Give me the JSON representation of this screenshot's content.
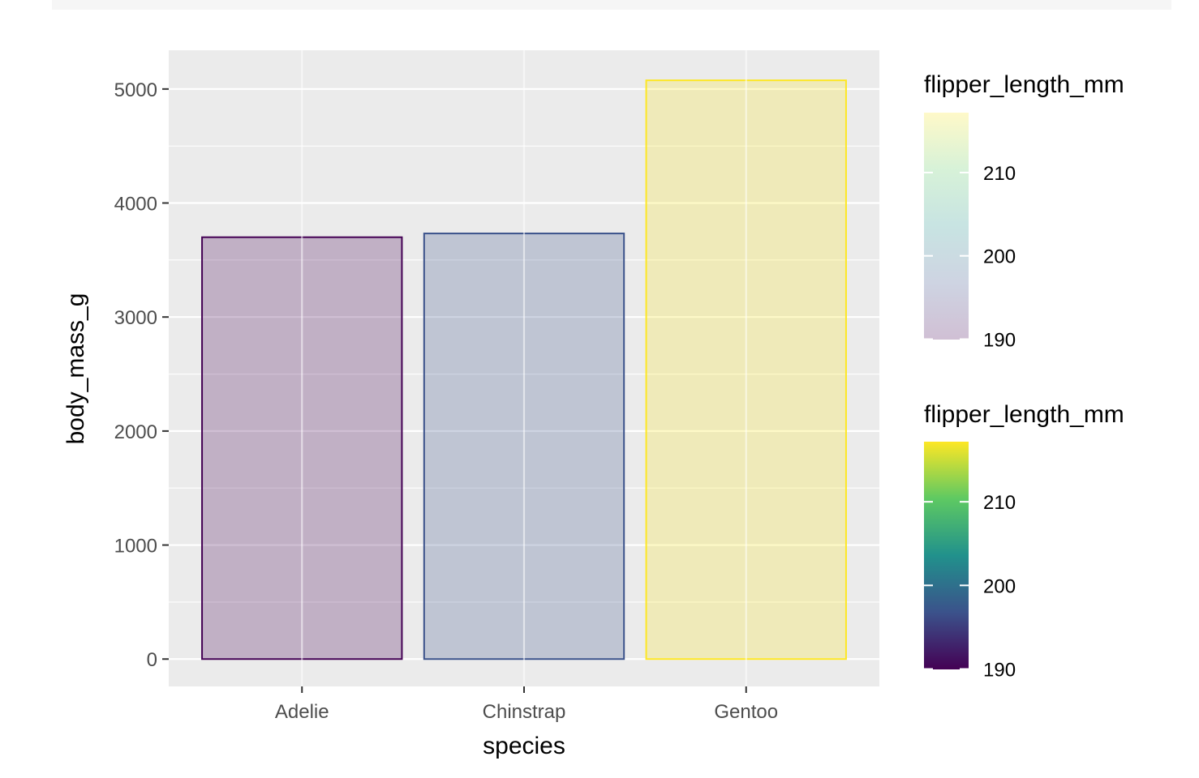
{
  "chart_data": {
    "type": "bar",
    "categories": [
      "Adelie",
      "Chinstrap",
      "Gentoo"
    ],
    "values": [
      3700,
      3733,
      5076
    ],
    "bar_fill_colors": [
      "#440154",
      "#3b528b",
      "#fde725"
    ],
    "bar_fill_opacity": 0.25,
    "xlabel": "species",
    "ylabel": "body_mass_g",
    "ylim": [
      -240,
      5340
    ],
    "yticks": [
      0,
      1000,
      2000,
      3000,
      4000,
      5000
    ],
    "grid": true,
    "panel_background": "#ebebeb",
    "legend_position": "right",
    "legends": [
      {
        "title": "flipper_length_mm",
        "range": [
          189.95,
          217.19
        ],
        "ticks": [
          190,
          200,
          210
        ],
        "alpha": 0.25,
        "colors": [
          "#440154",
          "#3b528b",
          "#21918c",
          "#5ec962",
          "#fde725"
        ]
      },
      {
        "title": "flipper_length_mm",
        "range": [
          189.95,
          217.19
        ],
        "ticks": [
          190,
          200,
          210
        ],
        "alpha": 1,
        "colors": [
          "#440154",
          "#3b528b",
          "#21918c",
          "#5ec962",
          "#fde725"
        ]
      }
    ]
  }
}
